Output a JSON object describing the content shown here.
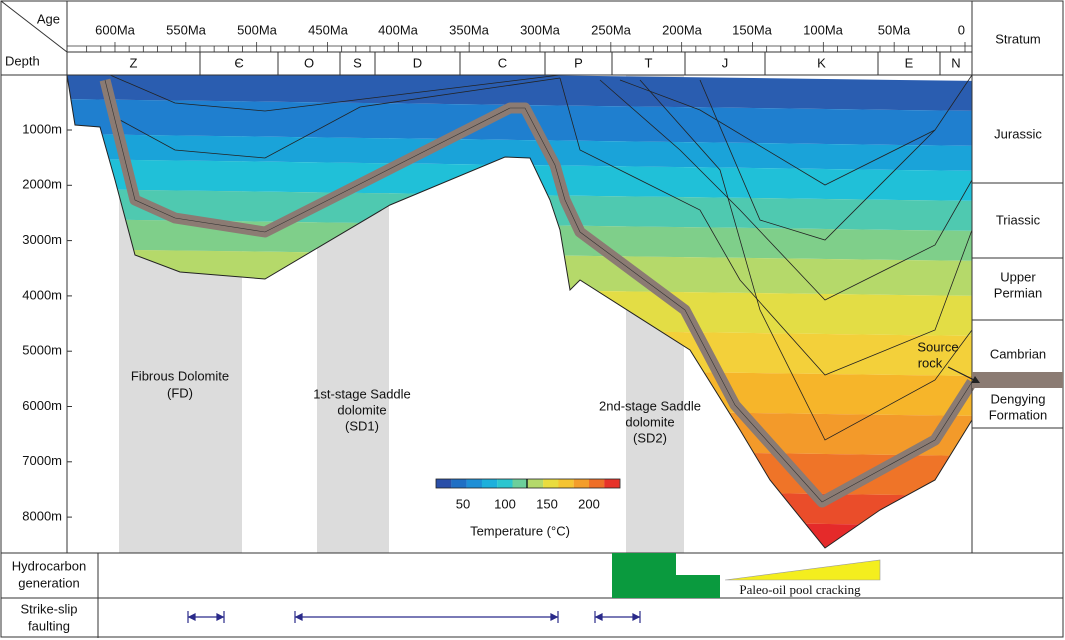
{
  "header": {
    "age_label": "Age",
    "depth_label": "Depth",
    "stratum_label": "Stratum"
  },
  "age_ticks": [
    "600Ma",
    "550Ma",
    "500Ma",
    "450Ma",
    "400Ma",
    "350Ma",
    "300Ma",
    "250Ma",
    "200Ma",
    "150Ma",
    "100Ma",
    "50Ma",
    "0"
  ],
  "periods": [
    "Z",
    "Є",
    "O",
    "S",
    "D",
    "C",
    "P",
    "T",
    "J",
    "K",
    "E",
    "N"
  ],
  "depth_ticks": [
    "1000m",
    "2000m",
    "3000m",
    "4000m",
    "5000m",
    "6000m",
    "7000m",
    "8000m"
  ],
  "strata": [
    [
      "Jurassic"
    ],
    [
      "Triassic"
    ],
    [
      "Upper",
      "Permian"
    ],
    [
      "Cambrian"
    ],
    [
      "Dengying",
      "Formation"
    ]
  ],
  "annotations": {
    "fd": [
      "Fibrous Dolomite",
      "(FD)"
    ],
    "sd1": [
      "1st-stage Saddle",
      "dolomite",
      "(SD1)"
    ],
    "sd2": [
      "2nd-stage Saddle",
      "dolomite",
      "(SD2)"
    ],
    "source": [
      "Source",
      "rock"
    ]
  },
  "legend": {
    "ticks": [
      "50",
      "100",
      "150",
      "200"
    ],
    "title": "Temperature (°C)"
  },
  "rows": {
    "hydrocarbon": [
      "Hydrocarbon",
      "generation"
    ],
    "faulting": [
      "Strike-slip",
      "faulting"
    ],
    "cracking": "Paleo-oil pool cracking"
  }
}
